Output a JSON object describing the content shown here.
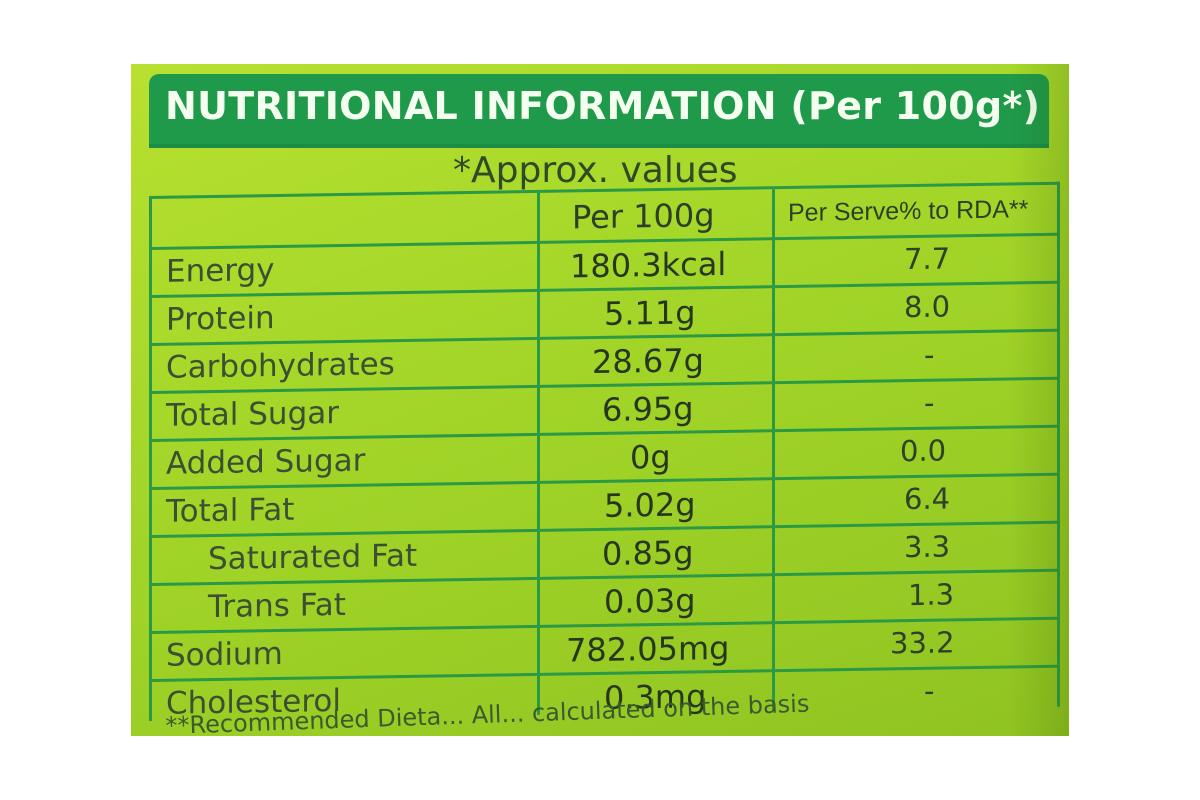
{
  "panel": {
    "title": "NUTRITIONAL INFORMATION (Per 100g*)",
    "approx_note": "*Approx. values"
  },
  "table": {
    "headers": [
      "",
      "Per 100g",
      "Per Serve% to RDA**"
    ],
    "rows": [
      {
        "name": "Energy",
        "per100g": "180.3kcal",
        "rda": "7.7"
      },
      {
        "name": "Protein",
        "per100g": "5.11g",
        "rda": "8.0"
      },
      {
        "name": "Carbohydrates",
        "per100g": "28.67g",
        "rda": "-"
      },
      {
        "name": "Total Sugar",
        "per100g": "6.95g",
        "rda": "-"
      },
      {
        "name": "Added Sugar",
        "per100g": "0g",
        "rda": "0.0"
      },
      {
        "name": "Total Fat",
        "per100g": "5.02g",
        "rda": "6.4"
      },
      {
        "name": "Saturated Fat",
        "per100g": "0.85g",
        "rda": "3.3"
      },
      {
        "name": "Trans Fat",
        "per100g": "0.03g",
        "rda": "1.3"
      },
      {
        "name": "Sodium",
        "per100g": "782.05mg",
        "rda": "33.2"
      },
      {
        "name": "Cholesterol",
        "per100g": "0.3mg",
        "rda": "-"
      }
    ]
  },
  "footnote": "**Recommended Dieta... All... calculated on the basis",
  "colors": {
    "package_green": "#a6d82a",
    "header_green": "#1f9a4a",
    "table_line": "#2c9a45",
    "text": "#2e3f28"
  }
}
